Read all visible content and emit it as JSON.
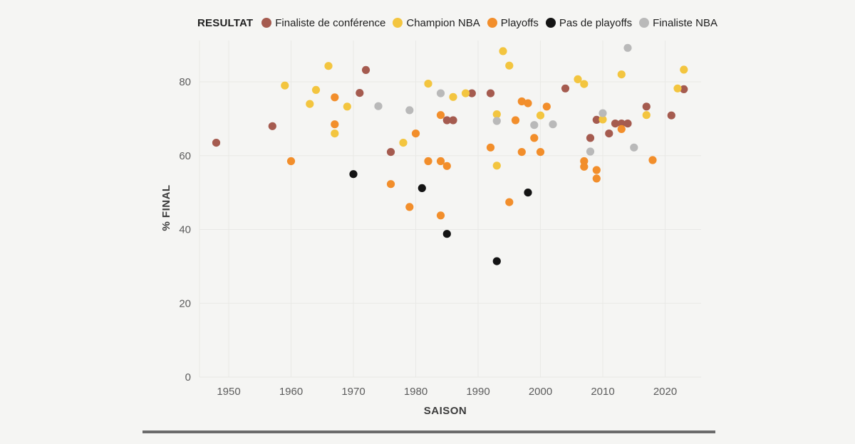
{
  "legend": {
    "title": "RESULTAT",
    "items": [
      {
        "key": "conf_finalist",
        "label": "Finaliste de conférence",
        "color": "#A55B4F"
      },
      {
        "key": "champion",
        "label": "Champion NBA",
        "color": "#F3C53F"
      },
      {
        "key": "playoffs",
        "label": "Playoffs",
        "color": "#F28E2B"
      },
      {
        "key": "no_playoffs",
        "label": "Pas de playoffs",
        "color": "#141414"
      },
      {
        "key": "nba_finalist",
        "label": "Finaliste NBA",
        "color": "#B9B9B9"
      }
    ]
  },
  "axes": {
    "x": {
      "title": "SAISON",
      "ticks": [
        1950,
        1960,
        1970,
        1980,
        1990,
        2000,
        2010,
        2020
      ],
      "domain": [
        1945,
        2025
      ],
      "grid": true
    },
    "y": {
      "title": "% FINAL",
      "ticks": [
        0,
        20,
        40,
        60,
        80
      ],
      "domain": [
        0,
        91
      ],
      "grid": true
    }
  },
  "colors": {
    "background": "#f5f5f3",
    "gridline": "#e9e9e6",
    "tick_text": "#5c5c5c",
    "axis_title_text": "#3b3b3b",
    "divider": "#6b6b6b"
  },
  "chart_data": {
    "type": "scatter",
    "xlabel": "SAISON",
    "ylabel": "% FINAL",
    "xlim": [
      1945,
      2025
    ],
    "ylim": [
      0,
      91
    ],
    "grid": "on",
    "legend_position": "top",
    "legend_title": "RESULTAT",
    "series": [
      {
        "name": "Finaliste de conférence",
        "color": "#A55B4F",
        "points": [
          [
            1948,
            63.5
          ],
          [
            1957,
            68
          ],
          [
            1971,
            77
          ],
          [
            1972,
            83.2
          ],
          [
            1976,
            61
          ],
          [
            1985,
            69.6
          ],
          [
            1986,
            69.6
          ],
          [
            1989,
            76.9
          ],
          [
            1992,
            76.9
          ],
          [
            2004,
            78.2
          ],
          [
            2008,
            64.8
          ],
          [
            2009,
            69.7
          ],
          [
            2011,
            66
          ],
          [
            2012,
            68.7
          ],
          [
            2013,
            68.7
          ],
          [
            2014,
            68.7
          ],
          [
            2017,
            73.3
          ],
          [
            2021,
            70.9
          ],
          [
            2023,
            78
          ]
        ]
      },
      {
        "name": "Champion NBA",
        "color": "#F3C53F",
        "points": [
          [
            1959,
            79
          ],
          [
            1963,
            74
          ],
          [
            1964,
            77.8
          ],
          [
            1966,
            84.3
          ],
          [
            1967,
            66
          ],
          [
            1969,
            73.3
          ],
          [
            1978,
            63.5
          ],
          [
            1982,
            79.5
          ],
          [
            1986,
            75.9
          ],
          [
            1988,
            76.9
          ],
          [
            1993,
            71.2
          ],
          [
            1993,
            57.3
          ],
          [
            1994,
            88.3
          ],
          [
            1995,
            84.4
          ],
          [
            2000,
            70.9
          ],
          [
            2006,
            80.7
          ],
          [
            2007,
            79.4
          ],
          [
            2010,
            69.8
          ],
          [
            2013,
            82
          ],
          [
            2017,
            71
          ],
          [
            2022,
            78.2
          ],
          [
            2023,
            83.3
          ]
        ]
      },
      {
        "name": "Playoffs",
        "color": "#F28E2B",
        "points": [
          [
            1960,
            58.5
          ],
          [
            1967,
            75.8
          ],
          [
            1967,
            68.5
          ],
          [
            1976,
            52.3
          ],
          [
            1979,
            46.1
          ],
          [
            1980,
            66
          ],
          [
            1982,
            58.5
          ],
          [
            1984,
            71
          ],
          [
            1984,
            58.5
          ],
          [
            1984,
            43.8
          ],
          [
            1985,
            57.2
          ],
          [
            1992,
            62.2
          ],
          [
            1995,
            47.4
          ],
          [
            1996,
            69.6
          ],
          [
            1997,
            74.7
          ],
          [
            1997,
            61
          ],
          [
            1998,
            74.2
          ],
          [
            1999,
            64.8
          ],
          [
            2000,
            61
          ],
          [
            2001,
            73.3
          ],
          [
            2007,
            58.5
          ],
          [
            2007,
            57
          ],
          [
            2009,
            56.1
          ],
          [
            2009,
            53.8
          ],
          [
            2013,
            67.2
          ],
          [
            2018,
            58.8
          ]
        ]
      },
      {
        "name": "Pas de playoffs",
        "color": "#141414",
        "points": [
          [
            1970,
            55
          ],
          [
            1981,
            51.2
          ],
          [
            1985,
            38.8
          ],
          [
            1993,
            31.4
          ],
          [
            1998,
            50
          ]
        ]
      },
      {
        "name": "Finaliste NBA",
        "color": "#B9B9B9",
        "points": [
          [
            1974,
            73.4
          ],
          [
            1979,
            72.3
          ],
          [
            1984,
            76.9
          ],
          [
            1993,
            69.4
          ],
          [
            1999,
            68.3
          ],
          [
            2002,
            68.5
          ],
          [
            2008,
            61.1
          ],
          [
            2010,
            71.5
          ],
          [
            2014,
            89.2
          ],
          [
            2015,
            62.2
          ]
        ]
      }
    ]
  }
}
